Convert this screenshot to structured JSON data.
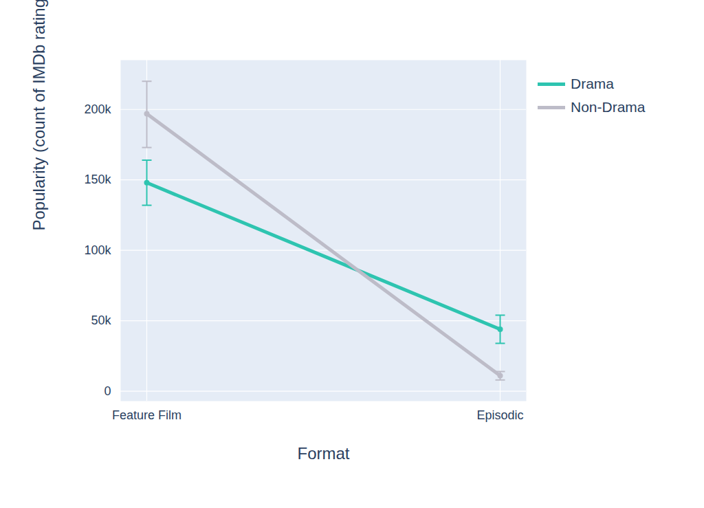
{
  "chart_data": {
    "type": "line",
    "x_label": "Format",
    "y_label": "Popularity (count of IMDb ratings)",
    "categories": [
      "Feature Film",
      "Episodic"
    ],
    "series": [
      {
        "name": "Drama",
        "color": "#2ec4b0",
        "values": [
          148000,
          44000
        ],
        "error_low": [
          132000,
          34000
        ],
        "error_high": [
          164000,
          54000
        ]
      },
      {
        "name": "Non-Drama",
        "color": "#bdbcc8",
        "values": [
          197000,
          11000
        ],
        "error_low": [
          173000,
          8000
        ],
        "error_high": [
          220000,
          14000
        ]
      }
    ],
    "ylim": [
      -7000,
      235000
    ],
    "yticks": [
      0,
      {
        "value": 50000,
        "label": "50k"
      },
      {
        "value": 100000,
        "label": "100k"
      },
      {
        "value": 150000,
        "label": "150k"
      },
      {
        "value": 200000,
        "label": "200k"
      }
    ],
    "grid": true,
    "legend": "right",
    "marker": "circle"
  }
}
